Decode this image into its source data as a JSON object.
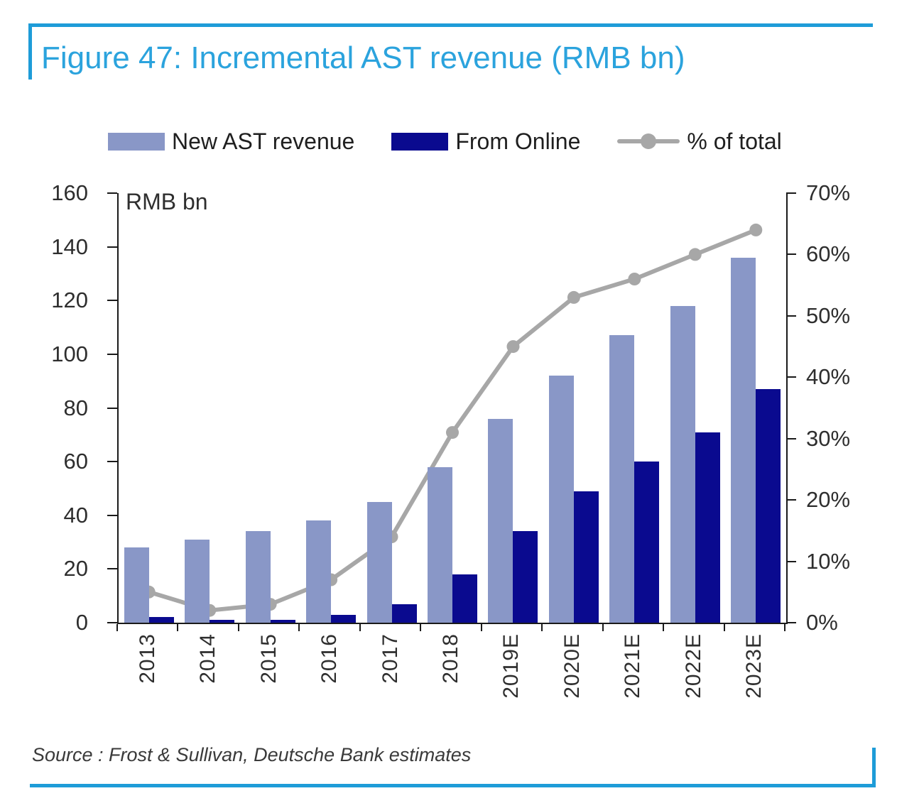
{
  "title": "Figure 47: Incremental AST revenue (RMB bn)",
  "source": "Source : Frost & Sullivan, Deutsche Bank estimates",
  "colors": {
    "title_blue": "#2BA3DD",
    "frame_blue": "#1E9CD8",
    "bar_new_ast": "#8997C7",
    "bar_from_online": "#0A0A8F",
    "line_gray": "#A7A7A7",
    "axis_black": "#1a1a1a"
  },
  "chart_data": {
    "type": "bar",
    "subtype": "clustered-bar-with-line",
    "categories": [
      "2013",
      "2014",
      "2015",
      "2016",
      "2017",
      "2018",
      "2019E",
      "2020E",
      "2021E",
      "2022E",
      "2023E"
    ],
    "series": [
      {
        "name": "New AST revenue",
        "type": "bar",
        "axis": "left",
        "values": [
          28,
          31,
          34,
          38,
          45,
          58,
          76,
          92,
          107,
          118,
          136
        ]
      },
      {
        "name": "From Online",
        "type": "bar",
        "axis": "left",
        "values": [
          2,
          1,
          1,
          3,
          7,
          18,
          34,
          49,
          60,
          71,
          87
        ]
      },
      {
        "name": "% of total",
        "type": "line",
        "axis": "right",
        "values": [
          5,
          2,
          3,
          7,
          14,
          31,
          45,
          53,
          56,
          60,
          64
        ]
      }
    ],
    "ylabel_left": "RMB bn",
    "left_axis": {
      "min": 0,
      "max": 160,
      "step": 20,
      "ticks": [
        "160",
        "140",
        "120",
        "100",
        "80",
        "60",
        "40",
        "20",
        "0"
      ]
    },
    "right_axis": {
      "min": 0,
      "max": 70,
      "step": 10,
      "ticks": [
        "70%",
        "60%",
        "50%",
        "40%",
        "30%",
        "20%",
        "10%",
        "0%"
      ]
    },
    "legend": [
      {
        "label": "New AST revenue",
        "swatch": "bar-light"
      },
      {
        "label": "From Online",
        "swatch": "bar-dark"
      },
      {
        "label": "% of total",
        "swatch": "line-marker"
      }
    ],
    "grid": false,
    "legend_position": "top"
  }
}
